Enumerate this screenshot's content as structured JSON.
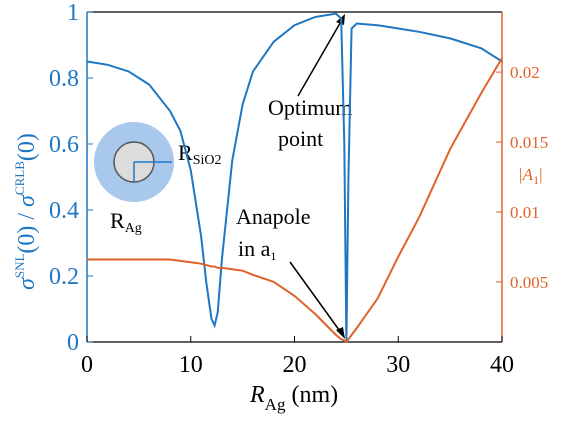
{
  "chart_data": {
    "type": "line",
    "x": [
      0,
      2,
      4,
      6,
      8,
      9,
      10,
      11,
      11.5,
      12,
      12.3,
      12.6,
      13,
      14,
      15,
      16,
      18,
      20,
      22,
      24,
      24.5,
      24.8,
      25,
      25.2,
      25.5,
      26,
      28,
      30,
      32,
      35,
      38,
      40
    ],
    "series": [
      {
        "color": "#1f77c4",
        "values": [
          0.85,
          0.84,
          0.82,
          0.78,
          0.7,
          0.64,
          0.52,
          0.32,
          0.18,
          0.07,
          0.05,
          0.09,
          0.25,
          0.55,
          0.72,
          0.82,
          0.91,
          0.96,
          0.985,
          0.995,
          0.98,
          0.6,
          0,
          0.5,
          0.95,
          0.965,
          0.96,
          0.95,
          0.94,
          0.92,
          0.89,
          0.85
        ]
      },
      {
        "color": "#e0622a",
        "axis": "y2",
        "values": [
          0.0066,
          0.0066,
          0.0066,
          0.0066,
          0.0066,
          0.0065,
          0.0064,
          0.0063,
          0.0062,
          0.0061,
          0.0061,
          0.006,
          0.006,
          0.0059,
          0.0058,
          0.0055,
          0.005,
          0.004,
          0.0027,
          0.0012,
          0.0009,
          0.0008,
          0.0007,
          0.0009,
          0.0012,
          0.0017,
          0.0038,
          0.0068,
          0.0096,
          0.0145,
          0.0185,
          0.021
        ]
      }
    ],
    "xlim": [
      0,
      40
    ],
    "xticks": [
      0,
      10,
      20,
      30,
      40
    ],
    "ylim": [
      0,
      1
    ],
    "yticks": [
      0,
      0.2,
      0.4,
      0.6,
      0.8,
      1
    ],
    "y2lim": [
      0.0007,
      0.0243
    ],
    "y2ticks": [
      0.005,
      0.01,
      0.015,
      0.02
    ],
    "xlabel": [
      "R",
      "Ag",
      " (nm)"
    ],
    "ylabel": [
      "σ",
      "SNL",
      "(0) / ",
      "σ",
      "CRLB",
      "(0)"
    ],
    "y2label": [
      "|A",
      "1",
      "|"
    ],
    "annotations": {
      "optimum": [
        "Optimum",
        "point"
      ],
      "anapole": [
        "Anapole",
        "in a",
        "1"
      ],
      "r_sio2": [
        "R",
        "SiO2"
      ],
      "r_ag": [
        "R",
        "Ag"
      ]
    }
  }
}
